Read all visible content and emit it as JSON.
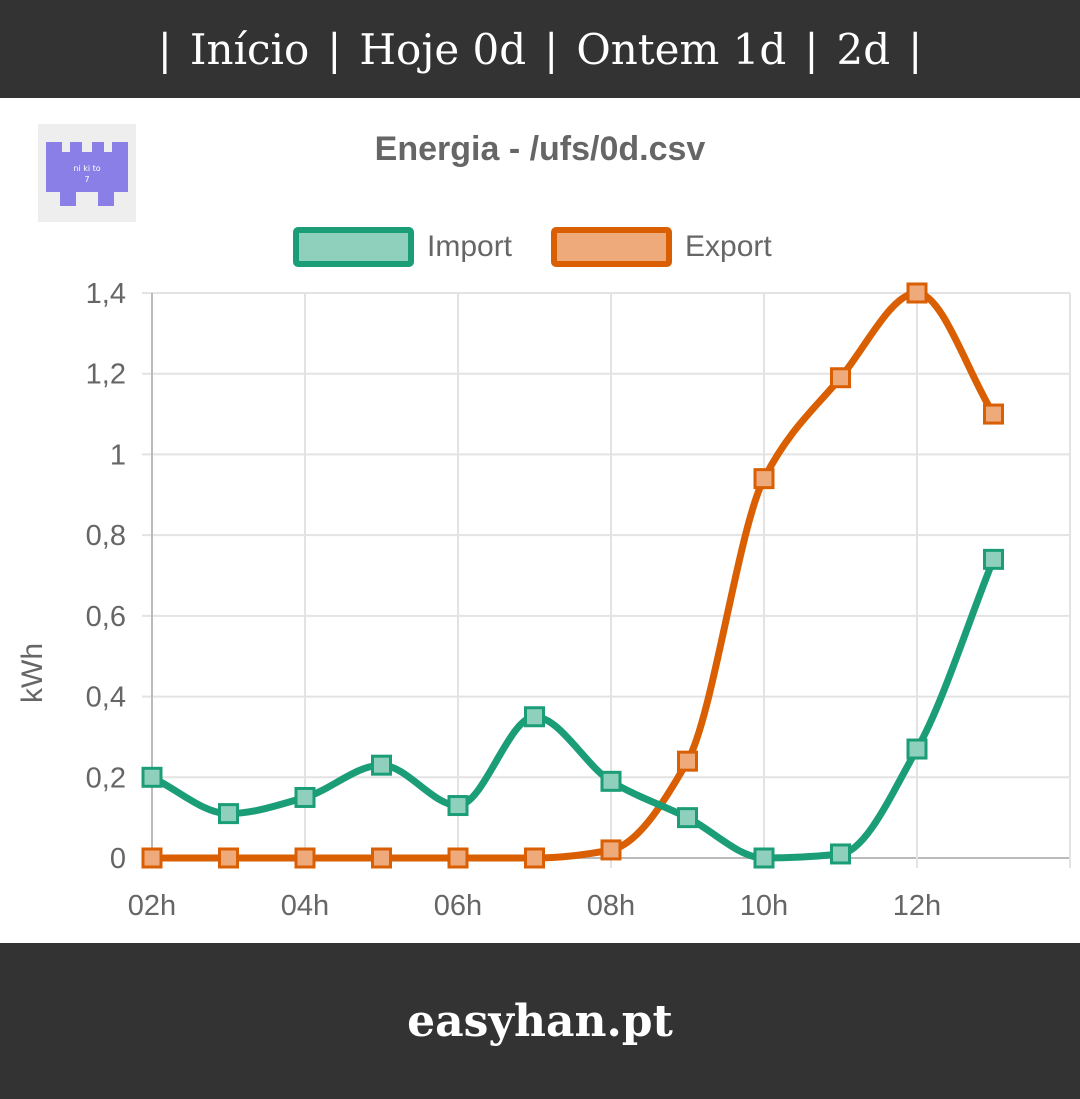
{
  "nav": {
    "separator": "|",
    "items": [
      {
        "label": "Início"
      },
      {
        "label": "Hoje 0d"
      },
      {
        "label": "Ontem 1d"
      },
      {
        "label": "2d"
      }
    ]
  },
  "logo": {
    "text_line1": "ni ki to",
    "text_line2": "7",
    "color": "#8a7fe6"
  },
  "footer": {
    "site": "easyhan.pt"
  },
  "chart_data": {
    "type": "line",
    "title": "Energia - /ufs/0d.csv",
    "xlabel": "",
    "ylabel": "kWh",
    "x_hours": [
      2,
      3,
      4,
      5,
      6,
      7,
      8,
      9,
      10,
      11,
      12,
      13
    ],
    "x_tick_labels": [
      "02h",
      "04h",
      "06h",
      "08h",
      "10h",
      "12h"
    ],
    "x_tick_hours": [
      2,
      4,
      6,
      8,
      10,
      12
    ],
    "y_ticks": [
      "0",
      "0,2",
      "0,4",
      "0,6",
      "0,8",
      "1",
      "1,2",
      "1,4"
    ],
    "y_tick_values": [
      0,
      0.2,
      0.4,
      0.6,
      0.8,
      1.0,
      1.2,
      1.4
    ],
    "ylim": [
      0,
      1.4
    ],
    "xlim": [
      2,
      14
    ],
    "grid": true,
    "legend_position": "top",
    "series": [
      {
        "name": "Import",
        "color": "#1b9e77",
        "fill": "#8fd0bd",
        "values": [
          0.2,
          0.11,
          0.15,
          0.23,
          0.13,
          0.35,
          0.19,
          0.1,
          0.0,
          0.01,
          0.27,
          0.74
        ]
      },
      {
        "name": "Export",
        "color": "#d95f02",
        "fill": "#eeaa7b",
        "values": [
          0.0,
          0.0,
          0.0,
          0.0,
          0.0,
          0.0,
          0.02,
          0.24,
          0.94,
          1.19,
          1.4,
          1.1
        ]
      }
    ]
  }
}
